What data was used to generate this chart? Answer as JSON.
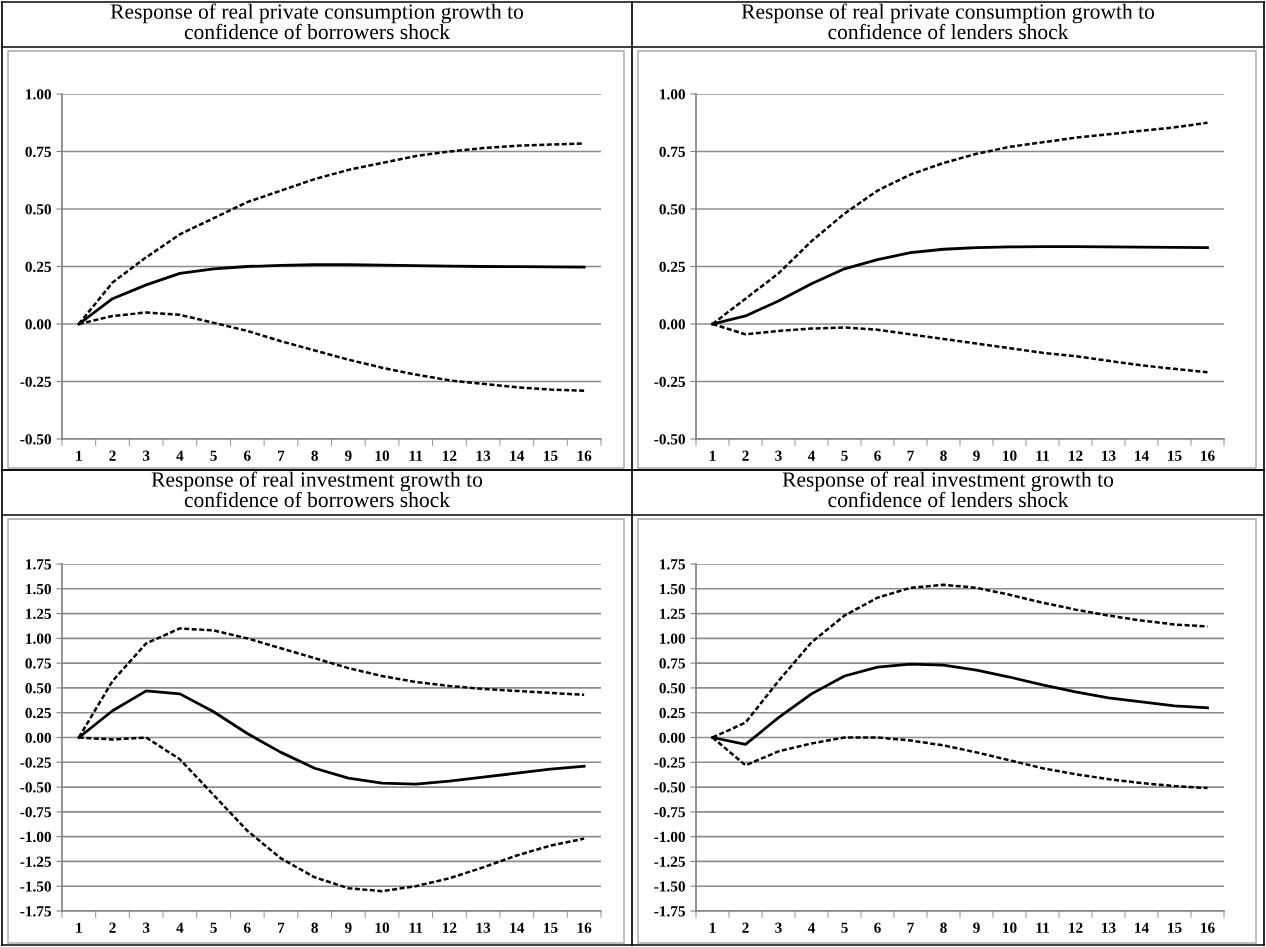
{
  "chart_data": [
    {
      "type": "line",
      "title": "Response of real private consumption growth to\nconfidence of borrowers shock",
      "categories": [
        "1",
        "2",
        "3",
        "4",
        "5",
        "6",
        "7",
        "8",
        "9",
        "10",
        "11",
        "12",
        "13",
        "14",
        "15",
        "16"
      ],
      "ylim": [
        -0.5,
        1.0
      ],
      "yticks": [
        {
          "value": -0.5,
          "label": "-0.50"
        },
        {
          "value": -0.25,
          "label": "-0.25"
        },
        {
          "value": 0,
          "label": "0.00"
        },
        {
          "value": 0.25,
          "label": "0.25"
        },
        {
          "value": 0.5,
          "label": "0.50"
        },
        {
          "value": 0.75,
          "label": "0.75"
        },
        {
          "value": 1.0,
          "label": "1.00"
        }
      ],
      "grid": "y",
      "legend": false,
      "series": [
        {
          "color": "#000000",
          "line_style": "solid",
          "values": [
            0,
            0.11,
            0.17,
            0.22,
            0.24,
            0.25,
            0.255,
            0.258,
            0.258,
            0.256,
            0.254,
            0.252,
            0.25,
            0.249,
            0.248,
            0.247
          ]
        },
        {
          "color": "#000000",
          "line_style": "dashed",
          "values": [
            0,
            0.18,
            0.29,
            0.39,
            0.46,
            0.53,
            0.58,
            0.63,
            0.67,
            0.7,
            0.73,
            0.75,
            0.765,
            0.775,
            0.78,
            0.785
          ]
        },
        {
          "color": "#000000",
          "line_style": "dashed",
          "values": [
            0,
            0.035,
            0.05,
            0.04,
            0.005,
            -0.03,
            -0.075,
            -0.115,
            -0.155,
            -0.19,
            -0.22,
            -0.245,
            -0.26,
            -0.275,
            -0.285,
            -0.29
          ]
        }
      ]
    },
    {
      "type": "line",
      "title": "Response of real private consumption growth to\nconfidence of lenders shock",
      "categories": [
        "1",
        "2",
        "3",
        "4",
        "5",
        "6",
        "7",
        "8",
        "9",
        "10",
        "11",
        "12",
        "13",
        "14",
        "15",
        "16"
      ],
      "ylim": [
        -0.5,
        1.0
      ],
      "yticks": [
        {
          "value": -0.5,
          "label": "-0.50"
        },
        {
          "value": -0.25,
          "label": "-0.25"
        },
        {
          "value": 0,
          "label": "0.00"
        },
        {
          "value": 0.25,
          "label": "0.25"
        },
        {
          "value": 0.5,
          "label": "0.50"
        },
        {
          "value": 0.75,
          "label": "0.75"
        },
        {
          "value": 1.0,
          "label": "1.00"
        }
      ],
      "grid": "y",
      "legend": false,
      "series": [
        {
          "color": "#000000",
          "line_style": "solid",
          "values": [
            0,
            0.035,
            0.1,
            0.175,
            0.24,
            0.28,
            0.31,
            0.325,
            0.332,
            0.335,
            0.336,
            0.336,
            0.335,
            0.334,
            0.333,
            0.332
          ]
        },
        {
          "color": "#000000",
          "line_style": "dashed",
          "values": [
            0,
            0.11,
            0.22,
            0.36,
            0.48,
            0.58,
            0.65,
            0.7,
            0.74,
            0.77,
            0.79,
            0.81,
            0.825,
            0.84,
            0.855,
            0.875
          ]
        },
        {
          "color": "#000000",
          "line_style": "dashed",
          "values": [
            0,
            -0.045,
            -0.03,
            -0.02,
            -0.015,
            -0.025,
            -0.045,
            -0.065,
            -0.085,
            -0.105,
            -0.125,
            -0.14,
            -0.16,
            -0.18,
            -0.195,
            -0.21
          ]
        }
      ]
    },
    {
      "type": "line",
      "title": "Response of real investment growth to\nconfidence of borrowers shock",
      "categories": [
        "1",
        "2",
        "3",
        "4",
        "5",
        "6",
        "7",
        "8",
        "9",
        "10",
        "11",
        "12",
        "13",
        "14",
        "15",
        "16"
      ],
      "ylim": [
        -1.75,
        1.75
      ],
      "yticks": [
        {
          "value": -1.75,
          "label": "-1.75"
        },
        {
          "value": -1.5,
          "label": "-1.50"
        },
        {
          "value": -1.25,
          "label": "-1.25"
        },
        {
          "value": -1.0,
          "label": "-1.00"
        },
        {
          "value": -0.75,
          "label": "-0.75"
        },
        {
          "value": -0.5,
          "label": "-0.50"
        },
        {
          "value": -0.25,
          "label": "-0.25"
        },
        {
          "value": 0,
          "label": "0.00"
        },
        {
          "value": 0.25,
          "label": "0.25"
        },
        {
          "value": 0.5,
          "label": "0.50"
        },
        {
          "value": 0.75,
          "label": "0.75"
        },
        {
          "value": 1.0,
          "label": "1.00"
        },
        {
          "value": 1.25,
          "label": "1.25"
        },
        {
          "value": 1.5,
          "label": "1.50"
        },
        {
          "value": 1.75,
          "label": "1.75"
        }
      ],
      "grid": "y",
      "legend": false,
      "series": [
        {
          "color": "#000000",
          "line_style": "solid",
          "values": [
            0,
            0.27,
            0.47,
            0.44,
            0.26,
            0.04,
            -0.15,
            -0.31,
            -0.41,
            -0.46,
            -0.47,
            -0.44,
            -0.4,
            -0.36,
            -0.32,
            -0.29
          ]
        },
        {
          "color": "#000000",
          "line_style": "dashed",
          "values": [
            0,
            0.57,
            0.95,
            1.1,
            1.08,
            1.0,
            0.9,
            0.8,
            0.7,
            0.62,
            0.56,
            0.52,
            0.49,
            0.47,
            0.45,
            0.43
          ]
        },
        {
          "color": "#000000",
          "line_style": "dashed",
          "values": [
            0,
            -0.02,
            0.0,
            -0.22,
            -0.58,
            -0.94,
            -1.22,
            -1.41,
            -1.52,
            -1.55,
            -1.5,
            -1.42,
            -1.31,
            -1.19,
            -1.09,
            -1.02
          ]
        }
      ]
    },
    {
      "type": "line",
      "title": "Response of real investment growth to\nconfidence of lenders shock",
      "categories": [
        "1",
        "2",
        "3",
        "4",
        "5",
        "6",
        "7",
        "8",
        "9",
        "10",
        "11",
        "12",
        "13",
        "14",
        "15",
        "16"
      ],
      "ylim": [
        -1.75,
        1.75
      ],
      "yticks": [
        {
          "value": -1.75,
          "label": "-1.75"
        },
        {
          "value": -1.5,
          "label": "-1.50"
        },
        {
          "value": -1.25,
          "label": "-1.25"
        },
        {
          "value": -1.0,
          "label": "-1.00"
        },
        {
          "value": -0.75,
          "label": "-0.75"
        },
        {
          "value": -0.5,
          "label": "-0.50"
        },
        {
          "value": -0.25,
          "label": "-0.25"
        },
        {
          "value": 0,
          "label": "0.00"
        },
        {
          "value": 0.25,
          "label": "0.25"
        },
        {
          "value": 0.5,
          "label": "0.50"
        },
        {
          "value": 0.75,
          "label": "0.75"
        },
        {
          "value": 1.0,
          "label": "1.00"
        },
        {
          "value": 1.25,
          "label": "1.25"
        },
        {
          "value": 1.5,
          "label": "1.50"
        },
        {
          "value": 1.75,
          "label": "1.75"
        }
      ],
      "grid": "y",
      "legend": false,
      "series": [
        {
          "color": "#000000",
          "line_style": "solid",
          "values": [
            0,
            -0.07,
            0.2,
            0.44,
            0.62,
            0.71,
            0.74,
            0.73,
            0.68,
            0.61,
            0.53,
            0.46,
            0.4,
            0.36,
            0.32,
            0.3
          ]
        },
        {
          "color": "#000000",
          "line_style": "dashed",
          "values": [
            0,
            0.15,
            0.57,
            0.96,
            1.23,
            1.41,
            1.51,
            1.54,
            1.51,
            1.44,
            1.36,
            1.29,
            1.23,
            1.18,
            1.14,
            1.12
          ]
        },
        {
          "color": "#000000",
          "line_style": "dashed",
          "values": [
            0,
            -0.28,
            -0.14,
            -0.06,
            0.0,
            0.0,
            -0.03,
            -0.08,
            -0.15,
            -0.23,
            -0.31,
            -0.37,
            -0.42,
            -0.46,
            -0.49,
            -0.51
          ]
        }
      ]
    }
  ]
}
